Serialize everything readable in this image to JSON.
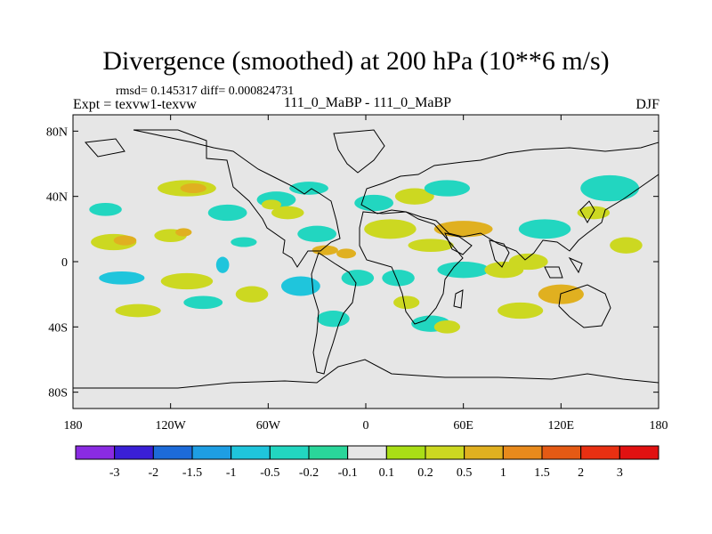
{
  "chart_data": {
    "type": "heatmap",
    "title": "Divergence (smoothed) at 200 hPa (10**6 m/s)",
    "stats_text": "rmsd= 0.145317  diff= 0.000824731",
    "left_label": "Expt = texvw1-texvw",
    "center_label": "111_0_MaBP - 111_0_MaBP",
    "right_label": "DJF",
    "xlim": [
      -180,
      180
    ],
    "ylim": [
      -90,
      90
    ],
    "x_ticks": [
      {
        "value": -180,
        "label": "180"
      },
      {
        "value": -120,
        "label": "120W"
      },
      {
        "value": -60,
        "label": "60W"
      },
      {
        "value": 0,
        "label": "0"
      },
      {
        "value": 60,
        "label": "60E"
      },
      {
        "value": 120,
        "label": "120E"
      },
      {
        "value": 180,
        "label": "180"
      }
    ],
    "y_ticks": [
      {
        "value": 80,
        "label": "80N"
      },
      {
        "value": 40,
        "label": "40N"
      },
      {
        "value": 0,
        "label": "0"
      },
      {
        "value": -40,
        "label": "40S"
      },
      {
        "value": -80,
        "label": "80S"
      }
    ],
    "colorbar": {
      "labels": [
        "-3",
        "-2",
        "-1.5",
        "-1",
        "-0.5",
        "-0.2",
        "-0.1",
        "0.1",
        "0.2",
        "0.5",
        "1",
        "1.5",
        "2",
        "3"
      ],
      "colors": [
        "#8a2be2",
        "#3a1fd6",
        "#1d6bd9",
        "#1e9ee3",
        "#1fc5dc",
        "#22d6c0",
        "#2ad69a",
        "#e6e6e6",
        "#a9de16",
        "#ccd821",
        "#e0b020",
        "#e88a1c",
        "#e45a14",
        "#e83012",
        "#e11111"
      ]
    },
    "field_blobs": [
      {
        "lon": -155,
        "lat": 12,
        "rx": 14,
        "ry": 5,
        "level": 0.2
      },
      {
        "lon": -148,
        "lat": 13,
        "rx": 7,
        "ry": 3,
        "level": 0.5
      },
      {
        "lon": -160,
        "lat": 32,
        "rx": 10,
        "ry": 4,
        "level": -0.2
      },
      {
        "lon": -110,
        "lat": 45,
        "rx": 18,
        "ry": 5,
        "level": 0.2
      },
      {
        "lon": -106,
        "lat": 45,
        "rx": 8,
        "ry": 3,
        "level": 0.5
      },
      {
        "lon": -85,
        "lat": 30,
        "rx": 12,
        "ry": 5,
        "level": -0.2
      },
      {
        "lon": -120,
        "lat": 16,
        "rx": 10,
        "ry": 4,
        "level": 0.2
      },
      {
        "lon": -112,
        "lat": 18,
        "rx": 5,
        "ry": 2.5,
        "level": 0.5
      },
      {
        "lon": -75,
        "lat": 12,
        "rx": 8,
        "ry": 3,
        "level": -0.2
      },
      {
        "lon": -88,
        "lat": -2,
        "rx": 4,
        "ry": 5,
        "level": -0.5
      },
      {
        "lon": -55,
        "lat": 38,
        "rx": 12,
        "ry": 5,
        "level": -0.2
      },
      {
        "lon": -58,
        "lat": 35,
        "rx": 6,
        "ry": 3,
        "level": 0.2
      },
      {
        "lon": -48,
        "lat": 30,
        "rx": 10,
        "ry": 4,
        "level": 0.2
      },
      {
        "lon": -35,
        "lat": 45,
        "rx": 12,
        "ry": 4,
        "level": -0.2
      },
      {
        "lon": -30,
        "lat": 17,
        "rx": 12,
        "ry": 5,
        "level": -0.2
      },
      {
        "lon": -25,
        "lat": 7,
        "rx": 8,
        "ry": 3,
        "level": 0.5
      },
      {
        "lon": -12,
        "lat": 5,
        "rx": 6,
        "ry": 3,
        "level": 0.5
      },
      {
        "lon": -5,
        "lat": -10,
        "rx": 10,
        "ry": 5,
        "level": -0.2
      },
      {
        "lon": -40,
        "lat": -15,
        "rx": 12,
        "ry": 6,
        "level": -0.5
      },
      {
        "lon": -70,
        "lat": -20,
        "rx": 10,
        "ry": 5,
        "level": 0.2
      },
      {
        "lon": -150,
        "lat": -10,
        "rx": 14,
        "ry": 4,
        "level": -0.5
      },
      {
        "lon": -140,
        "lat": -30,
        "rx": 14,
        "ry": 4,
        "level": 0.2
      },
      {
        "lon": -110,
        "lat": -12,
        "rx": 16,
        "ry": 5,
        "level": 0.2
      },
      {
        "lon": -100,
        "lat": -25,
        "rx": 12,
        "ry": 4,
        "level": -0.2
      },
      {
        "lon": -20,
        "lat": -35,
        "rx": 10,
        "ry": 5,
        "level": -0.2
      },
      {
        "lon": 5,
        "lat": 36,
        "rx": 12,
        "ry": 5,
        "level": -0.2
      },
      {
        "lon": 15,
        "lat": 20,
        "rx": 16,
        "ry": 6,
        "level": 0.2
      },
      {
        "lon": 30,
        "lat": 40,
        "rx": 12,
        "ry": 5,
        "level": 0.2
      },
      {
        "lon": 50,
        "lat": 45,
        "rx": 14,
        "ry": 5,
        "level": -0.2
      },
      {
        "lon": 60,
        "lat": 20,
        "rx": 18,
        "ry": 5,
        "level": 0.5
      },
      {
        "lon": 40,
        "lat": 10,
        "rx": 14,
        "ry": 4,
        "level": 0.2
      },
      {
        "lon": 20,
        "lat": -10,
        "rx": 10,
        "ry": 5,
        "level": -0.2
      },
      {
        "lon": 25,
        "lat": -25,
        "rx": 8,
        "ry": 4,
        "level": 0.2
      },
      {
        "lon": 40,
        "lat": -38,
        "rx": 12,
        "ry": 5,
        "level": -0.2
      },
      {
        "lon": 50,
        "lat": -40,
        "rx": 8,
        "ry": 4,
        "level": 0.2
      },
      {
        "lon": 60,
        "lat": -5,
        "rx": 16,
        "ry": 5,
        "level": -0.2
      },
      {
        "lon": 85,
        "lat": -5,
        "rx": 12,
        "ry": 5,
        "level": 0.2
      },
      {
        "lon": 110,
        "lat": 20,
        "rx": 16,
        "ry": 6,
        "level": -0.2
      },
      {
        "lon": 100,
        "lat": 0,
        "rx": 12,
        "ry": 5,
        "level": 0.2
      },
      {
        "lon": 120,
        "lat": -20,
        "rx": 14,
        "ry": 6,
        "level": 0.5
      },
      {
        "lon": 95,
        "lat": -30,
        "rx": 14,
        "ry": 5,
        "level": 0.2
      },
      {
        "lon": 150,
        "lat": 45,
        "rx": 18,
        "ry": 8,
        "level": -0.2
      },
      {
        "lon": 160,
        "lat": 10,
        "rx": 10,
        "ry": 5,
        "level": 0.2
      },
      {
        "lon": 140,
        "lat": 30,
        "rx": 10,
        "ry": 4,
        "level": 0.2
      }
    ]
  }
}
